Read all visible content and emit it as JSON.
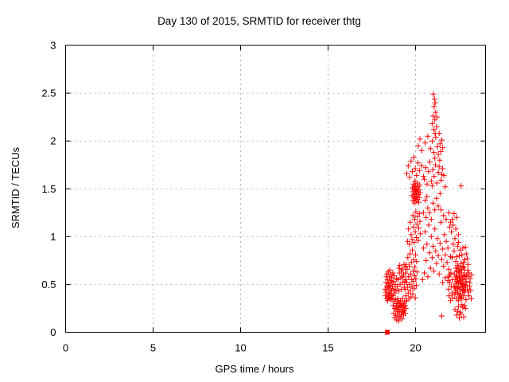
{
  "chart_data": {
    "type": "scatter",
    "title": "Day 130 of 2015, SRMTID for receiver thtg",
    "xlabel": "GPS time / hours",
    "ylabel": "SRMTID / TECUs",
    "xlim": [
      0,
      24
    ],
    "ylim": [
      0,
      3
    ],
    "xticks": [
      0,
      5,
      10,
      15,
      20
    ],
    "xtick_labels": [
      "0",
      "5",
      "10",
      "15",
      "20"
    ],
    "yticks": [
      0,
      0.5,
      1,
      1.5,
      2,
      2.5,
      3
    ],
    "ytick_labels": [
      "0",
      "0.5",
      "1",
      "1.5",
      "2",
      "2.5",
      "3"
    ],
    "grid": true,
    "legend_position": "none",
    "marker": "plus-cross",
    "marker_color": "#ff0000",
    "grid_color": "#b4b4b4",
    "border_color": "#000000",
    "square_point": [
      18.38,
      0
    ],
    "points": [
      [
        18.26,
        0.45
      ],
      [
        18.28,
        0.38
      ],
      [
        18.3,
        0.52
      ],
      [
        18.31,
        0.42
      ],
      [
        18.33,
        0.58
      ],
      [
        18.34,
        0.35
      ],
      [
        18.36,
        0.48
      ],
      [
        18.37,
        0.61
      ],
      [
        18.38,
        0.4
      ],
      [
        18.4,
        0.55
      ],
      [
        18.41,
        0.33
      ],
      [
        18.42,
        0.47
      ],
      [
        18.44,
        0.63
      ],
      [
        18.45,
        0.37
      ],
      [
        18.46,
        0.51
      ],
      [
        18.48,
        0.44
      ],
      [
        18.49,
        0.58
      ],
      [
        18.5,
        0.36
      ],
      [
        18.52,
        0.49
      ],
      [
        18.53,
        0.65
      ],
      [
        18.54,
        0.41
      ],
      [
        18.56,
        0.54
      ],
      [
        18.57,
        0.34
      ],
      [
        18.58,
        0.46
      ],
      [
        18.6,
        0.6
      ],
      [
        18.61,
        0.39
      ],
      [
        18.62,
        0.52
      ],
      [
        18.64,
        0.43
      ],
      [
        18.65,
        0.57
      ],
      [
        18.66,
        0.35
      ],
      [
        18.68,
        0.48
      ],
      [
        18.7,
        0.62
      ],
      [
        18.72,
        0.38
      ],
      [
        18.74,
        0.53
      ],
      [
        18.76,
        0.45
      ],
      [
        18.78,
        0.59
      ],
      [
        18.8,
        0.41
      ],
      [
        18.84,
        0.5
      ],
      [
        18.88,
        0.44
      ],
      [
        18.92,
        0.56
      ],
      [
        18.72,
        0.28
      ],
      [
        18.75,
        0.2
      ],
      [
        18.78,
        0.32
      ],
      [
        18.8,
        0.15
      ],
      [
        18.82,
        0.25
      ],
      [
        18.85,
        0.34
      ],
      [
        18.87,
        0.18
      ],
      [
        18.9,
        0.27
      ],
      [
        18.92,
        0.13
      ],
      [
        18.94,
        0.3
      ],
      [
        18.96,
        0.22
      ],
      [
        18.98,
        0.35
      ],
      [
        19.0,
        0.17
      ],
      [
        19.02,
        0.26
      ],
      [
        19.04,
        0.12
      ],
      [
        19.06,
        0.31
      ],
      [
        19.08,
        0.21
      ],
      [
        19.1,
        0.28
      ],
      [
        19.12,
        0.16
      ],
      [
        19.14,
        0.33
      ],
      [
        19.16,
        0.24
      ],
      [
        19.18,
        0.19
      ],
      [
        19.2,
        0.29
      ],
      [
        19.22,
        0.14
      ],
      [
        19.24,
        0.26
      ],
      [
        19.26,
        0.35
      ],
      [
        19.28,
        0.22
      ],
      [
        19.3,
        0.3
      ],
      [
        19.32,
        0.18
      ],
      [
        19.34,
        0.27
      ],
      [
        19.36,
        0.23
      ],
      [
        19.38,
        0.32
      ],
      [
        19.4,
        0.2
      ],
      [
        19.42,
        0.28
      ],
      [
        19.44,
        0.25
      ],
      [
        18.88,
        0.24
      ],
      [
        18.95,
        0.32
      ],
      [
        19.05,
        0.24
      ],
      [
        19.15,
        0.27
      ],
      [
        19.25,
        0.21
      ],
      [
        18.96,
        0.48
      ],
      [
        19.0,
        0.55
      ],
      [
        19.04,
        0.43
      ],
      [
        19.08,
        0.62
      ],
      [
        19.12,
        0.5
      ],
      [
        19.16,
        0.57
      ],
      [
        19.2,
        0.45
      ],
      [
        19.24,
        0.66
      ],
      [
        19.28,
        0.52
      ],
      [
        19.32,
        0.6
      ],
      [
        19.36,
        0.47
      ],
      [
        19.4,
        0.68
      ],
      [
        19.44,
        0.55
      ],
      [
        19.1,
        0.7
      ],
      [
        19.18,
        0.64
      ],
      [
        19.26,
        0.58
      ],
      [
        19.34,
        0.71
      ],
      [
        19.42,
        0.62
      ],
      [
        19.06,
        0.67
      ],
      [
        19.38,
        0.53
      ],
      [
        19.4,
        0.45
      ],
      [
        19.42,
        0.62
      ],
      [
        19.44,
        0.38
      ],
      [
        19.46,
        0.71
      ],
      [
        19.48,
        0.52
      ],
      [
        19.5,
        0.33
      ],
      [
        19.52,
        0.66
      ],
      [
        19.54,
        0.47
      ],
      [
        19.56,
        0.78
      ],
      [
        19.58,
        0.41
      ],
      [
        19.6,
        0.58
      ],
      [
        19.62,
        0.35
      ],
      [
        19.64,
        0.69
      ],
      [
        19.66,
        0.5
      ],
      [
        19.68,
        0.82
      ],
      [
        19.7,
        0.44
      ],
      [
        19.72,
        0.61
      ],
      [
        19.74,
        0.37
      ],
      [
        19.76,
        0.73
      ],
      [
        19.78,
        0.55
      ],
      [
        19.8,
        0.48
      ],
      [
        19.82,
        0.86
      ],
      [
        19.84,
        0.4
      ],
      [
        19.86,
        0.64
      ],
      [
        19.88,
        0.53
      ],
      [
        19.9,
        0.76
      ],
      [
        19.92,
        0.46
      ],
      [
        19.94,
        0.59
      ],
      [
        19.96,
        0.68
      ],
      [
        19.98,
        0.36
      ],
      [
        20.0,
        0.81
      ],
      [
        20.02,
        0.56
      ],
      [
        20.04,
        0.49
      ],
      [
        20.06,
        0.74
      ],
      [
        20.08,
        0.63
      ],
      [
        19.55,
        0.95
      ],
      [
        19.6,
        1.08
      ],
      [
        19.65,
        0.92
      ],
      [
        19.7,
        1.15
      ],
      [
        19.75,
        1.02
      ],
      [
        19.8,
        0.97
      ],
      [
        19.85,
        1.22
      ],
      [
        19.88,
        1.1
      ],
      [
        19.92,
        0.94
      ],
      [
        19.95,
        1.18
      ],
      [
        19.98,
        1.05
      ],
      [
        20.02,
        1.26
      ],
      [
        20.05,
        0.99
      ],
      [
        20.08,
        1.13
      ],
      [
        20.12,
        1.21
      ],
      [
        20.15,
        0.96
      ],
      [
        20.18,
        1.09
      ],
      [
        20.22,
        1.24
      ],
      [
        20.25,
        1.16
      ],
      [
        20.28,
        1.03
      ],
      [
        19.8,
        1.43
      ],
      [
        19.82,
        1.51
      ],
      [
        19.84,
        1.38
      ],
      [
        19.86,
        1.47
      ],
      [
        19.88,
        1.55
      ],
      [
        19.9,
        1.41
      ],
      [
        19.91,
        1.49
      ],
      [
        19.93,
        1.35
      ],
      [
        19.94,
        1.52
      ],
      [
        19.96,
        1.44
      ],
      [
        19.97,
        1.58
      ],
      [
        19.99,
        1.4
      ],
      [
        20.0,
        1.48
      ],
      [
        20.01,
        1.53
      ],
      [
        20.03,
        1.37
      ],
      [
        20.04,
        1.45
      ],
      [
        20.06,
        1.5
      ],
      [
        20.07,
        1.42
      ],
      [
        20.09,
        1.56
      ],
      [
        20.1,
        1.39
      ],
      [
        20.12,
        1.47
      ],
      [
        20.14,
        1.52
      ],
      [
        20.16,
        1.44
      ],
      [
        20.18,
        1.36
      ],
      [
        20.2,
        1.49
      ],
      [
        20.22,
        1.41
      ],
      [
        20.24,
        1.54
      ],
      [
        20.26,
        1.46
      ],
      [
        19.5,
        1.66
      ],
      [
        19.58,
        1.74
      ],
      [
        19.66,
        1.62
      ],
      [
        19.74,
        1.79
      ],
      [
        19.82,
        1.68
      ],
      [
        19.9,
        1.83
      ],
      [
        19.98,
        1.71
      ],
      [
        20.06,
        1.64
      ],
      [
        20.14,
        1.77
      ],
      [
        20.22,
        1.69
      ],
      [
        20.35,
        1.74
      ],
      [
        20.45,
        1.63
      ],
      [
        21.02,
        2.49
      ],
      [
        21.08,
        2.44
      ],
      [
        21.12,
        2.4
      ],
      [
        21.06,
        2.36
      ],
      [
        20.95,
        2.18
      ],
      [
        21.0,
        2.26
      ],
      [
        21.05,
        2.12
      ],
      [
        21.1,
        2.22
      ],
      [
        21.15,
        2.3
      ],
      [
        21.2,
        2.15
      ],
      [
        21.12,
        2.08
      ],
      [
        21.22,
        2.25
      ],
      [
        20.15,
        1.95
      ],
      [
        20.25,
        2.02
      ],
      [
        20.35,
        1.9
      ],
      [
        20.55,
        1.98
      ],
      [
        20.7,
        2.05
      ],
      [
        20.85,
        1.92
      ],
      [
        20.95,
        2.0
      ],
      [
        21.05,
        1.88
      ],
      [
        21.15,
        2.04
      ],
      [
        21.25,
        1.94
      ],
      [
        21.35,
        2.08
      ],
      [
        21.4,
        1.97
      ],
      [
        21.45,
        1.89
      ],
      [
        21.5,
        2.01
      ],
      [
        21.55,
        1.93
      ],
      [
        21.3,
        1.86
      ],
      [
        20.5,
        1.6
      ],
      [
        20.58,
        1.72
      ],
      [
        20.66,
        1.55
      ],
      [
        20.74,
        1.68
      ],
      [
        20.82,
        1.78
      ],
      [
        20.9,
        1.58
      ],
      [
        20.98,
        1.7
      ],
      [
        21.06,
        1.63
      ],
      [
        21.14,
        1.75
      ],
      [
        21.22,
        1.56
      ],
      [
        21.3,
        1.67
      ],
      [
        21.38,
        1.8
      ],
      [
        21.46,
        1.59
      ],
      [
        21.54,
        1.71
      ],
      [
        21.62,
        1.64
      ],
      [
        21.7,
        1.52
      ],
      [
        21.1,
        1.82
      ],
      [
        20.95,
        1.53
      ],
      [
        21.35,
        1.73
      ],
      [
        21.5,
        1.65
      ],
      [
        20.4,
        0.55
      ],
      [
        20.45,
        0.88
      ],
      [
        20.5,
        0.62
      ],
      [
        20.55,
        1.05
      ],
      [
        20.6,
        0.75
      ],
      [
        20.65,
        0.92
      ],
      [
        20.7,
        0.58
      ],
      [
        20.75,
        1.12
      ],
      [
        20.8,
        0.83
      ],
      [
        20.85,
        0.67
      ],
      [
        20.9,
        1.0
      ],
      [
        20.95,
        0.78
      ],
      [
        21.0,
        0.9
      ],
      [
        21.05,
        0.64
      ],
      [
        21.1,
        1.08
      ],
      [
        21.15,
        0.85
      ],
      [
        21.2,
        0.72
      ],
      [
        21.25,
        0.98
      ],
      [
        21.3,
        0.8
      ],
      [
        21.35,
        0.61
      ],
      [
        21.4,
        0.93
      ],
      [
        21.45,
        1.15
      ],
      [
        21.5,
        0.76
      ],
      [
        21.55,
        0.87
      ],
      [
        21.6,
        0.69
      ],
      [
        21.65,
        1.02
      ],
      [
        21.7,
        0.81
      ],
      [
        21.75,
        0.95
      ],
      [
        21.8,
        0.73
      ],
      [
        21.85,
        0.88
      ],
      [
        21.9,
        0.66
      ],
      [
        21.95,
        1.1
      ],
      [
        22.0,
        0.79
      ],
      [
        21.45,
        1.28
      ],
      [
        21.6,
        1.22
      ],
      [
        21.75,
        1.18
      ],
      [
        21.9,
        1.25
      ],
      [
        22.0,
        1.15
      ],
      [
        20.6,
        1.2
      ],
      [
        20.7,
        1.3
      ],
      [
        20.8,
        1.25
      ],
      [
        20.9,
        1.18
      ],
      [
        21.0,
        1.35
      ],
      [
        21.1,
        1.28
      ],
      [
        21.2,
        1.4
      ],
      [
        21.3,
        1.32
      ],
      [
        21.4,
        1.45
      ],
      [
        20.55,
        1.38
      ],
      [
        20.65,
        1.42
      ],
      [
        21.55,
        0.52
      ],
      [
        21.7,
        0.57
      ],
      [
        21.85,
        0.54
      ],
      [
        21.95,
        0.6
      ],
      [
        21.5,
        0.17
      ],
      [
        20.45,
        1.25
      ],
      [
        21.88,
        0.45
      ],
      [
        21.92,
        0.38
      ],
      [
        21.96,
        0.52
      ],
      [
        22.0,
        0.33
      ],
      [
        22.04,
        0.48
      ],
      [
        22.08,
        0.41
      ],
      [
        22.12,
        0.55
      ],
      [
        21.9,
        0.58
      ],
      [
        22.02,
        0.62
      ],
      [
        22.1,
        0.36
      ],
      [
        22.2,
        0.48
      ],
      [
        22.22,
        0.61
      ],
      [
        22.24,
        0.39
      ],
      [
        22.26,
        0.55
      ],
      [
        22.28,
        0.44
      ],
      [
        22.3,
        0.67
      ],
      [
        22.32,
        0.51
      ],
      [
        22.34,
        0.35
      ],
      [
        22.36,
        0.59
      ],
      [
        22.38,
        0.46
      ],
      [
        22.4,
        0.7
      ],
      [
        22.42,
        0.41
      ],
      [
        22.44,
        0.63
      ],
      [
        22.46,
        0.52
      ],
      [
        22.48,
        0.37
      ],
      [
        22.5,
        0.57
      ],
      [
        22.52,
        0.45
      ],
      [
        22.54,
        0.66
      ],
      [
        22.56,
        0.4
      ],
      [
        22.58,
        0.54
      ],
      [
        22.6,
        0.48
      ],
      [
        22.62,
        0.62
      ],
      [
        22.64,
        0.36
      ],
      [
        22.66,
        0.58
      ],
      [
        22.68,
        0.43
      ],
      [
        22.7,
        0.69
      ],
      [
        22.72,
        0.5
      ],
      [
        22.74,
        0.38
      ],
      [
        22.76,
        0.6
      ],
      [
        22.78,
        0.47
      ],
      [
        22.8,
        0.65
      ],
      [
        22.82,
        0.42
      ],
      [
        22.84,
        0.56
      ],
      [
        22.86,
        0.49
      ],
      [
        22.88,
        0.34
      ],
      [
        22.9,
        0.53
      ],
      [
        22.25,
        0.47
      ],
      [
        22.35,
        0.64
      ],
      [
        22.45,
        0.33
      ],
      [
        22.55,
        0.58
      ],
      [
        22.65,
        0.51
      ],
      [
        22.75,
        0.68
      ],
      [
        22.85,
        0.45
      ],
      [
        22.3,
        0.42
      ],
      [
        22.4,
        0.56
      ],
      [
        22.5,
        0.62
      ],
      [
        22.6,
        0.38
      ],
      [
        22.7,
        0.55
      ],
      [
        22.8,
        0.5
      ],
      [
        22.9,
        0.6
      ],
      [
        22.33,
        0.58
      ],
      [
        22.43,
        0.47
      ],
      [
        22.53,
        0.52
      ],
      [
        22.63,
        0.65
      ],
      [
        22.73,
        0.44
      ],
      [
        22.83,
        0.59
      ],
      [
        22.37,
        0.53
      ],
      [
        22.47,
        0.68
      ],
      [
        22.57,
        0.35
      ],
      [
        22.67,
        0.48
      ],
      [
        22.1,
        0.78
      ],
      [
        22.2,
        0.85
      ],
      [
        22.3,
        0.74
      ],
      [
        22.4,
        0.9
      ],
      [
        22.5,
        0.8
      ],
      [
        22.6,
        0.72
      ],
      [
        22.7,
        0.88
      ],
      [
        22.8,
        0.76
      ],
      [
        22.9,
        0.82
      ],
      [
        23.0,
        0.71
      ],
      [
        22.15,
        0.92
      ],
      [
        22.35,
        0.79
      ],
      [
        22.55,
        0.86
      ],
      [
        22.75,
        0.73
      ],
      [
        22.95,
        0.77
      ],
      [
        22.45,
        0.94
      ],
      [
        22.65,
        0.81
      ],
      [
        22.85,
        0.89
      ],
      [
        22.25,
        0.24
      ],
      [
        22.35,
        0.18
      ],
      [
        22.45,
        0.27
      ],
      [
        22.55,
        0.21
      ],
      [
        22.65,
        0.29
      ],
      [
        22.75,
        0.16
      ],
      [
        22.85,
        0.25
      ],
      [
        22.4,
        0.22
      ],
      [
        22.6,
        0.19
      ],
      [
        22.8,
        0.28
      ],
      [
        22.5,
        0.15
      ],
      [
        22.7,
        0.26
      ],
      [
        22.95,
        0.45
      ],
      [
        23.0,
        0.58
      ],
      [
        23.05,
        0.38
      ],
      [
        23.1,
        0.52
      ],
      [
        23.15,
        0.44
      ],
      [
        23.2,
        0.6
      ],
      [
        22.98,
        0.65
      ],
      [
        23.08,
        0.48
      ],
      [
        23.18,
        0.35
      ],
      [
        23.02,
        0.42
      ],
      [
        23.12,
        0.56
      ],
      [
        23.06,
        0.62
      ],
      [
        22.05,
        1.05
      ],
      [
        22.15,
        1.12
      ],
      [
        22.25,
        0.98
      ],
      [
        22.35,
        1.2
      ],
      [
        22.45,
        1.02
      ],
      [
        22.1,
        1.18
      ],
      [
        22.3,
        1.08
      ],
      [
        22.2,
        1.24
      ],
      [
        22.6,
        1.53
      ]
    ]
  }
}
